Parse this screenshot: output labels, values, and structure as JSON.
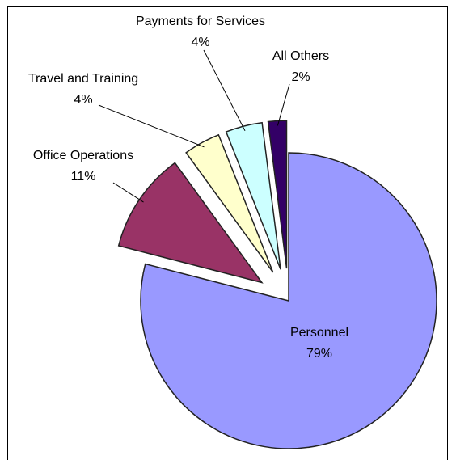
{
  "chart_data": {
    "type": "pie",
    "categories": [
      "Personnel",
      "Office Operations",
      "Travel and Training",
      "Payments for Services",
      "All Others"
    ],
    "values": [
      79,
      11,
      4,
      4,
      2
    ],
    "value_labels": [
      "79%",
      "11%",
      "4%",
      "4%",
      "2%"
    ],
    "colors": [
      "#9999ff",
      "#993366",
      "#ffffcc",
      "#ccffff",
      "#330066"
    ]
  }
}
